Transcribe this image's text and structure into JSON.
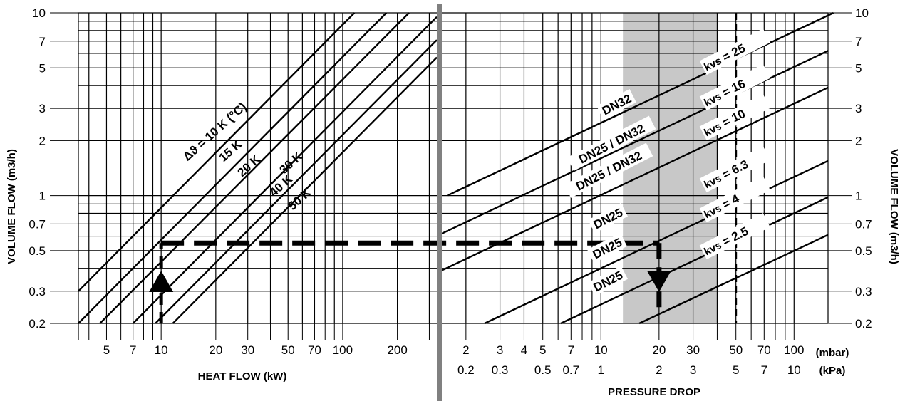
{
  "chart_data": [
    {
      "type": "line",
      "panel": "heat-flow",
      "xlabel": "HEAT FLOW (kW)",
      "ylabel": "VOLUME FLOW (m3/h)",
      "x_scale": "log",
      "y_scale": "log",
      "xlim": [
        3.5,
        330
      ],
      "ylim": [
        0.2,
        10
      ],
      "x_ticks": [
        5,
        7,
        10,
        20,
        30,
        50,
        70,
        100,
        200
      ],
      "y_ticks": [
        0.2,
        0.3,
        0.5,
        0.7,
        1,
        2,
        3,
        5,
        7,
        10
      ],
      "series": [
        {
          "name": "Δϑ = 10 K (°C)",
          "x": [
            3.5,
            116
          ],
          "y": [
            0.3,
            10
          ]
        },
        {
          "name": "15 K",
          "x": [
            3.5,
            174
          ],
          "y": [
            0.2,
            10
          ]
        },
        {
          "name": "20 K",
          "x": [
            4.6,
            232
          ],
          "y": [
            0.2,
            10
          ]
        },
        {
          "name": "30 K",
          "x": [
            7.0,
            330
          ],
          "y": [
            0.2,
            9.5
          ]
        },
        {
          "name": "40 K",
          "x": [
            9.3,
            330
          ],
          "y": [
            0.2,
            7.1
          ]
        },
        {
          "name": "50 K",
          "x": [
            11.6,
            330
          ],
          "y": [
            0.2,
            5.7
          ]
        }
      ],
      "example": {
        "x": [
          10,
          10
        ],
        "y": [
          0.2,
          0.55
        ]
      }
    },
    {
      "type": "line",
      "panel": "pressure-drop",
      "xlabel": "PRESSURE DROP",
      "ylabel": "VOLUME FLOW (m3/h)",
      "x_scale": "log",
      "y_scale": "log",
      "xlim": [
        1.5,
        150
      ],
      "ylim": [
        0.2,
        10
      ],
      "x_units": [
        "(mbar)",
        "(kPa)"
      ],
      "x_ticks_mbar": [
        "2",
        "3",
        "4",
        "5",
        "7",
        "10",
        "20",
        "30",
        "50",
        "70",
        "100"
      ],
      "x_ticks_kpa": [
        "0.2",
        "0.3",
        "",
        "0.5",
        "0.7",
        "1",
        "2",
        "3",
        "5",
        "7",
        "10"
      ],
      "y_ticks": [
        0.2,
        0.3,
        0.5,
        0.7,
        1,
        2,
        3,
        5,
        7,
        10
      ],
      "shaded_range_mbar": [
        13,
        40
      ],
      "series": [
        {
          "name": "kvs = 25",
          "x": [
            1.6,
            160
          ],
          "y": [
            1.0,
            10
          ]
        },
        {
          "name": "kvs = 16",
          "x": [
            1.5,
            150
          ],
          "y": [
            0.62,
            6.2
          ]
        },
        {
          "name": "kvs = 10",
          "x": [
            1.5,
            150
          ],
          "y": [
            0.39,
            3.9
          ]
        },
        {
          "name": "kvs = 6.3",
          "x": [
            2.5,
            150
          ],
          "y": [
            0.2,
            1.55
          ]
        },
        {
          "name": "kvs = 4",
          "x": [
            6.2,
            150
          ],
          "y": [
            0.2,
            0.98
          ]
        },
        {
          "name": "kvs = 2.5",
          "x": [
            15.8,
            150
          ],
          "y": [
            0.2,
            0.61
          ]
        }
      ],
      "curve_labels": [
        "DN32",
        "DN25 / DN32",
        "DN25 / DN32",
        "DN25",
        "DN25",
        "DN25"
      ],
      "kvs_symbol": "kvs",
      "kvs_values": [
        "= 25",
        "= 16",
        "= 10",
        "= 6.3",
        "= 4",
        "= 2.5"
      ],
      "example": {
        "flow": 0.55,
        "pressure_mbar": 20
      }
    }
  ],
  "left_axis_title": "VOLUME FLOW (m3/h)",
  "right_axis_title": "VOLUME FLOW (m3/h)",
  "colors": {
    "grid": "#000000",
    "divider": "#808080",
    "shade": "#c8c8c8"
  }
}
